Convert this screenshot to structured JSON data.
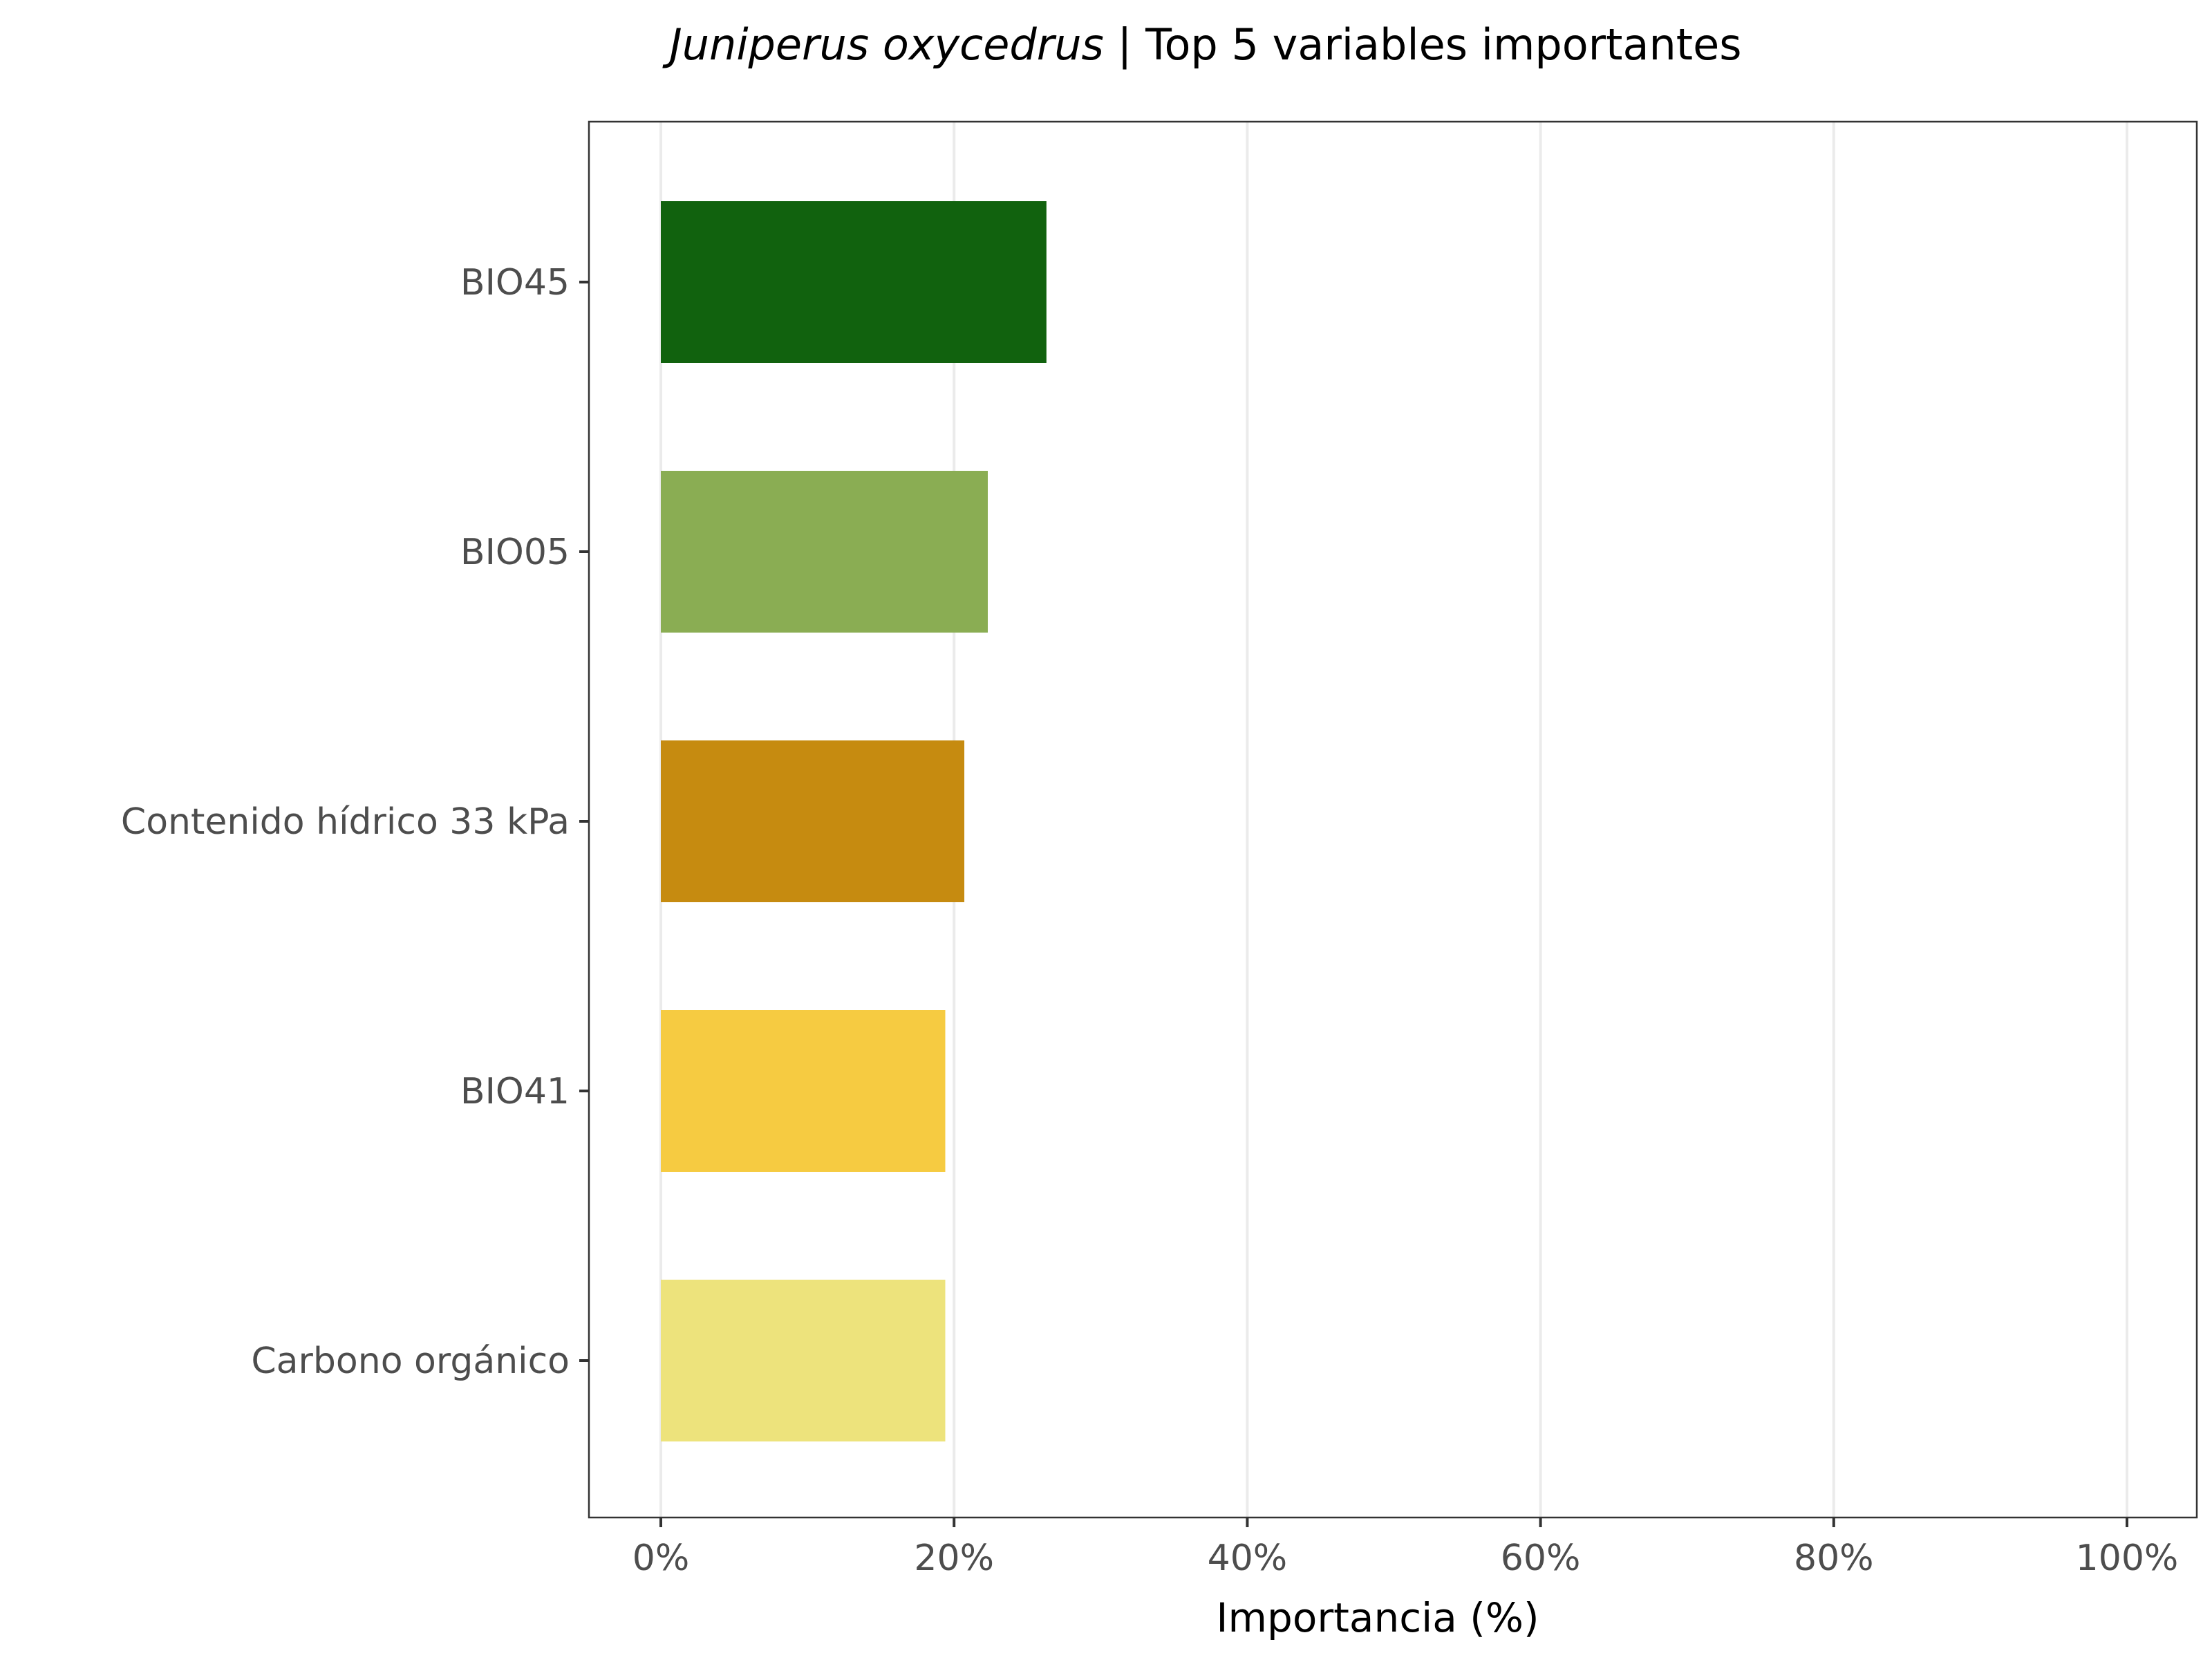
{
  "chart_data": {
    "type": "bar",
    "orientation": "horizontal",
    "title": {
      "italic_part": "Juniperus oxycedrus",
      "rest": " | Top 5 variables importantes"
    },
    "xlabel": "Importancia (%)",
    "ylabel": "",
    "categories": [
      "BIO45",
      "BIO05",
      "Contenido hídrico 33 kPa",
      "BIO41",
      "Carbono orgánico"
    ],
    "values": [
      26.3,
      22.3,
      20.7,
      19.4,
      19.4
    ],
    "colors": [
      "#11620e",
      "#8aad53",
      "#c68b10",
      "#f6cb41",
      "#ede37c"
    ],
    "xlim": [
      0,
      100
    ],
    "x_ticks": [
      0,
      20,
      40,
      60,
      80,
      100
    ],
    "x_tick_labels": [
      "0%",
      "20%",
      "40%",
      "60%",
      "80%",
      "100%"
    ],
    "grid": "vertical major",
    "legend": "none"
  }
}
